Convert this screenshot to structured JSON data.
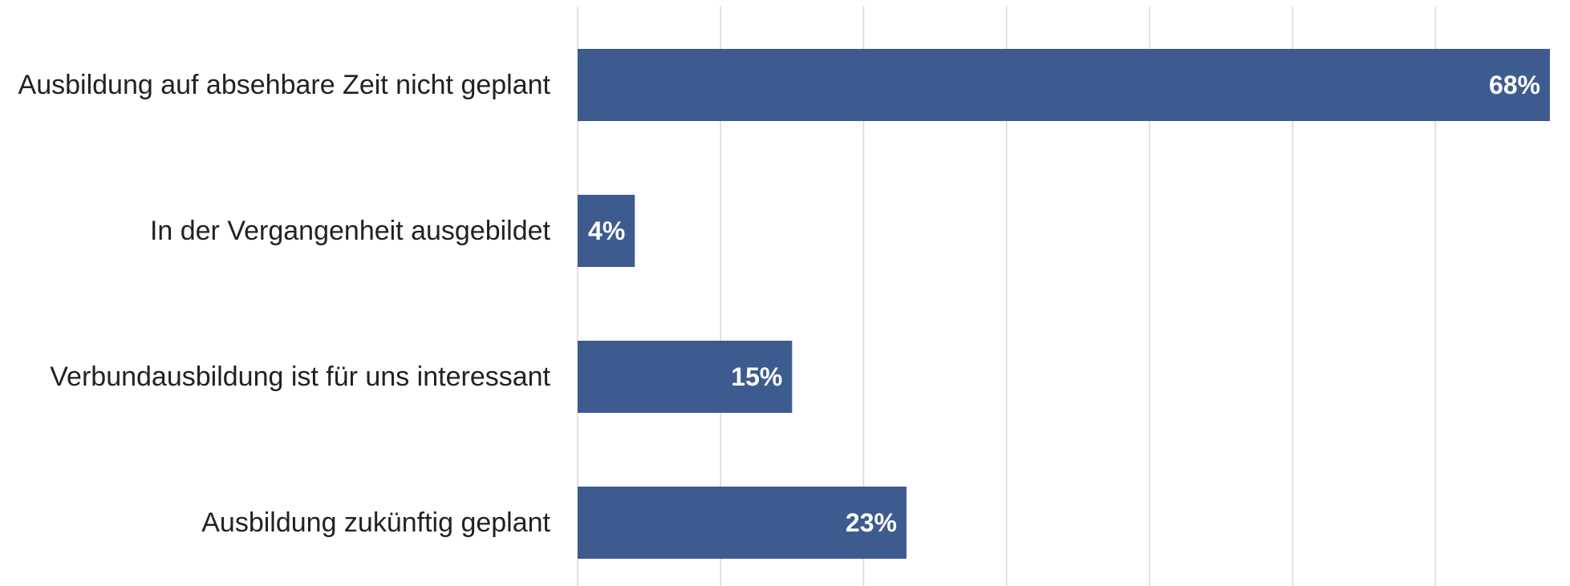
{
  "chart_data": {
    "type": "bar",
    "orientation": "horizontal",
    "title": "",
    "xlabel": "",
    "ylabel": "",
    "categories": [
      "Ausbildung auf absehbare Zeit nicht geplant",
      "In der Vergangenheit ausgebildet",
      "Verbundausbildung ist für uns interessant",
      "Ausbildung zukünftig geplant"
    ],
    "values": [
      68,
      4,
      15,
      23
    ],
    "data_labels": [
      "68%",
      "4%",
      "15%",
      "23%"
    ],
    "xlim": [
      0,
      68
    ],
    "gridline_step": 10,
    "grid": true,
    "legend": "none",
    "bar_color": "#3e5b8f",
    "label_color": "#ffffff",
    "gridline_color": "#d9d9d9",
    "text_color": "#222222"
  }
}
